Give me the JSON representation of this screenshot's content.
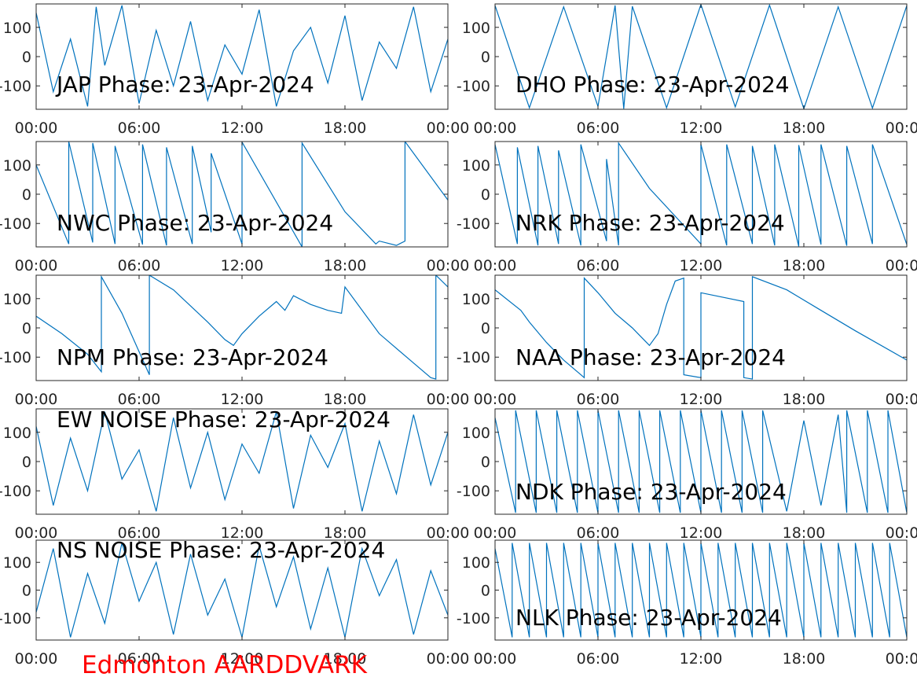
{
  "figure": {
    "footer_title": "Edmonton AARDDVARK"
  },
  "chart_data": [
    {
      "type": "line",
      "title": "JAP Phase: 23-Apr-2024",
      "xlabel": "",
      "ylabel": "",
      "xticks": [
        "00:00",
        "06:00",
        "12:00",
        "18:00",
        "00:00"
      ],
      "yticks": [
        "-100",
        "0",
        "100"
      ],
      "xlim": [
        0,
        24
      ],
      "ylim": [
        -180,
        180
      ],
      "grid": false,
      "line_color": "#0072bd",
      "series": [
        {
          "x": [
            0,
            1,
            2,
            3,
            3.5,
            4,
            5,
            6,
            7,
            8,
            9,
            10,
            11,
            12,
            13,
            14,
            15,
            16,
            17,
            18,
            19,
            20,
            21,
            22,
            23,
            24
          ],
          "values": [
            150,
            -120,
            60,
            -170,
            170,
            -30,
            175,
            -160,
            90,
            -100,
            120,
            -150,
            40,
            -60,
            160,
            -170,
            20,
            100,
            -90,
            140,
            -150,
            50,
            -40,
            170,
            -120,
            60
          ]
        }
      ]
    },
    {
      "type": "line",
      "title": "DHO Phase: 23-Apr-2024",
      "xlabel": "",
      "ylabel": "",
      "xticks": [
        "00:00",
        "06:00",
        "12:00",
        "18:00",
        "00:00"
      ],
      "yticks": [
        "-100",
        "0",
        "100"
      ],
      "xlim": [
        0,
        24
      ],
      "ylim": [
        -180,
        180
      ],
      "grid": false,
      "line_color": "#0072bd",
      "series": [
        {
          "x": [
            0,
            2,
            4,
            6,
            7,
            7.5,
            8,
            10,
            12,
            14,
            16,
            18,
            20,
            22,
            24
          ],
          "values": [
            175,
            -175,
            170,
            -170,
            175,
            -178,
            172,
            -175,
            178,
            -172,
            176,
            -178,
            170,
            -176,
            174
          ]
        }
      ]
    },
    {
      "type": "line",
      "title": "NWC Phase: 23-Apr-2024",
      "xlabel": "",
      "ylabel": "",
      "xticks": [
        "00:00",
        "06:00",
        "12:00",
        "18:00",
        "00:00"
      ],
      "yticks": [
        "-100",
        "0",
        "100"
      ],
      "xlim": [
        0,
        24
      ],
      "ylim": [
        -180,
        180
      ],
      "grid": false,
      "line_color": "#0072bd",
      "series": [
        {
          "x": [
            0,
            1.9,
            1.9,
            3.3,
            3.3,
            4.6,
            4.6,
            6.2,
            6.2,
            7.6,
            7.6,
            9.1,
            9.1,
            10.2,
            10.2,
            12,
            12,
            15.5,
            15.5,
            18,
            19.8,
            20,
            21,
            21.5,
            21.5,
            24
          ],
          "values": [
            100,
            -170,
            180,
            -165,
            175,
            -170,
            165,
            -172,
            170,
            -175,
            160,
            -170,
            165,
            -130,
            140,
            -170,
            178,
            -180,
            175,
            -60,
            -170,
            -160,
            -175,
            -160,
            180,
            -20
          ]
        }
      ]
    },
    {
      "type": "line",
      "title": "NRK Phase: 23-Apr-2024",
      "xlabel": "",
      "ylabel": "",
      "xticks": [
        "00:00",
        "06:00",
        "12:00",
        "18:00",
        "00:00"
      ],
      "yticks": [
        "-100",
        "0",
        "100"
      ],
      "xlim": [
        0,
        24
      ],
      "ylim": [
        -180,
        180
      ],
      "grid": false,
      "line_color": "#0072bd",
      "series": [
        {
          "x": [
            0,
            1.3,
            1.3,
            2.5,
            2.5,
            3.7,
            3.7,
            5,
            5,
            6.5,
            6.5,
            7.2,
            7.2,
            9,
            12,
            12,
            13.5,
            13.5,
            15,
            15,
            16.3,
            16.3,
            17.7,
            17.7,
            19,
            19,
            20.5,
            20.5,
            22,
            22,
            24
          ],
          "values": [
            170,
            -170,
            160,
            -175,
            165,
            -170,
            150,
            -175,
            170,
            -160,
            120,
            -175,
            175,
            20,
            -170,
            170,
            -175,
            170,
            -170,
            165,
            -175,
            170,
            -178,
            168,
            -172,
            170,
            -176,
            165,
            -170,
            170,
            -172
          ]
        }
      ]
    },
    {
      "type": "line",
      "title": "NPM Phase: 23-Apr-2024",
      "xlabel": "",
      "ylabel": "",
      "xticks": [
        "00:00",
        "06:00",
        "12:00",
        "18:00",
        "00:00"
      ],
      "yticks": [
        "-100",
        "0",
        "100"
      ],
      "xlim": [
        0,
        24
      ],
      "ylim": [
        -180,
        180
      ],
      "grid": false,
      "line_color": "#0072bd",
      "series": [
        {
          "x": [
            0,
            1.5,
            3,
            3.8,
            3.8,
            5,
            6.6,
            6.6,
            8,
            10,
            11,
            11.5,
            12,
            13,
            14,
            14.5,
            15,
            16,
            17,
            17.8,
            18,
            20,
            22,
            23,
            23.3,
            23.3,
            24
          ],
          "values": [
            40,
            -20,
            -90,
            -150,
            175,
            50,
            -160,
            180,
            130,
            20,
            -40,
            -60,
            -20,
            40,
            90,
            60,
            110,
            80,
            60,
            50,
            140,
            -20,
            -120,
            -170,
            -175,
            180,
            140
          ]
        }
      ]
    },
    {
      "type": "line",
      "title": "NAA Phase: 23-Apr-2024",
      "xlabel": "",
      "ylabel": "",
      "xticks": [
        "00:00",
        "06:00",
        "12:00",
        "18:00",
        "00:00"
      ],
      "yticks": [
        "-100",
        "0",
        "100"
      ],
      "xlim": [
        0,
        24
      ],
      "ylim": [
        -180,
        180
      ],
      "grid": false,
      "line_color": "#0072bd",
      "series": [
        {
          "x": [
            0,
            1.5,
            2,
            3,
            4,
            5,
            5.2,
            5.2,
            6,
            7,
            8,
            8.5,
            9,
            9.5,
            10,
            10.5,
            11,
            11,
            12,
            12,
            14.5,
            14.5,
            15,
            15,
            17,
            19,
            21,
            24
          ],
          "values": [
            130,
            60,
            20,
            -50,
            -110,
            -160,
            -170,
            170,
            120,
            50,
            0,
            -30,
            -60,
            -20,
            80,
            160,
            170,
            -160,
            -170,
            120,
            90,
            -170,
            -175,
            175,
            130,
            60,
            -10,
            -110
          ]
        }
      ]
    },
    {
      "type": "line",
      "title": "EW NOISE Phase: 23-Apr-2024",
      "xlabel": "",
      "ylabel": "",
      "xticks": [
        "00:00",
        "06:00",
        "12:00",
        "18:00",
        "00:00"
      ],
      "yticks": [
        "-100",
        "0",
        "100"
      ],
      "xlim": [
        0,
        24
      ],
      "ylim": [
        -180,
        180
      ],
      "grid": false,
      "line_color": "#0072bd",
      "series": [
        {
          "x": [
            0,
            1,
            2,
            3,
            4,
            5,
            6,
            7,
            8,
            9,
            10,
            11,
            12,
            13,
            14,
            15,
            16,
            17,
            18,
            19,
            20,
            21,
            22,
            23,
            24
          ],
          "values": [
            120,
            -150,
            80,
            -100,
            170,
            -60,
            40,
            -170,
            150,
            -90,
            100,
            -130,
            60,
            -40,
            170,
            -160,
            90,
            -20,
            130,
            -170,
            70,
            -110,
            160,
            -80,
            100
          ]
        }
      ]
    },
    {
      "type": "line",
      "title": "NDK Phase: 23-Apr-2024",
      "xlabel": "",
      "ylabel": "",
      "xticks": [
        "00:00",
        "06:00",
        "12:00",
        "18:00",
        "00:00"
      ],
      "yticks": [
        "-100",
        "0",
        "100"
      ],
      "xlim": [
        0,
        24
      ],
      "ylim": [
        -180,
        180
      ],
      "grid": false,
      "line_color": "#0072bd",
      "series": [
        {
          "x": [
            0,
            1.2,
            1.2,
            2.4,
            2.4,
            3.6,
            3.6,
            4.8,
            4.8,
            6,
            6,
            7.2,
            7.2,
            8.4,
            8.4,
            9.6,
            9.6,
            10.8,
            10.8,
            12,
            12,
            13.2,
            13.2,
            14.4,
            14.4,
            15.6,
            15.6,
            17,
            18,
            19,
            20,
            20.5,
            20.5,
            21.7,
            21.7,
            22.9,
            22.9,
            24
          ],
          "values": [
            150,
            -175,
            175,
            -175,
            175,
            -175,
            175,
            -175,
            175,
            -175,
            175,
            -175,
            175,
            -175,
            175,
            -175,
            175,
            -175,
            175,
            -175,
            175,
            -175,
            175,
            -175,
            175,
            -175,
            175,
            -170,
            140,
            -150,
            160,
            -175,
            175,
            -175,
            175,
            -175,
            175,
            -175
          ]
        }
      ]
    },
    {
      "type": "line",
      "title": "NS NOISE Phase: 23-Apr-2024",
      "xlabel": "",
      "ylabel": "",
      "xticks": [
        "00:00",
        "06:00",
        "12:00",
        "18:00",
        "00:00"
      ],
      "yticks": [
        "-100",
        "0",
        "100"
      ],
      "xlim": [
        0,
        24
      ],
      "ylim": [
        -180,
        180
      ],
      "grid": false,
      "line_color": "#0072bd",
      "series": [
        {
          "x": [
            0,
            1,
            2,
            3,
            4,
            5,
            6,
            7,
            8,
            9,
            10,
            11,
            12,
            13,
            14,
            15,
            16,
            17,
            18,
            19,
            20,
            21,
            22,
            23,
            24
          ],
          "values": [
            -80,
            150,
            -170,
            60,
            -120,
            170,
            -40,
            100,
            -160,
            130,
            -90,
            40,
            -170,
            160,
            -60,
            120,
            -140,
            80,
            -170,
            150,
            -20,
            110,
            -160,
            70,
            -90
          ]
        }
      ]
    },
    {
      "type": "line",
      "title": "NLK Phase: 23-Apr-2024",
      "xlabel": "",
      "ylabel": "",
      "xticks": [
        "00:00",
        "06:00",
        "12:00",
        "18:00",
        "00:00"
      ],
      "yticks": [
        "-100",
        "0",
        "100"
      ],
      "xlim": [
        0,
        24
      ],
      "ylim": [
        -180,
        180
      ],
      "grid": false,
      "line_color": "#0072bd",
      "series": [
        {
          "x": [
            0,
            1,
            1,
            2,
            2,
            3,
            3,
            4,
            4,
            5,
            5,
            6,
            6,
            7,
            7,
            8,
            8,
            9,
            9,
            10,
            10,
            11,
            11,
            12,
            12,
            13,
            13,
            14,
            14,
            15,
            15,
            16,
            16,
            17,
            17,
            18,
            18,
            19,
            19,
            20,
            20,
            21,
            21,
            22,
            22,
            23,
            23,
            24
          ],
          "values": [
            150,
            -170,
            170,
            -170,
            170,
            -170,
            170,
            -170,
            170,
            -170,
            170,
            -170,
            170,
            -170,
            170,
            -170,
            170,
            -170,
            170,
            -170,
            170,
            -170,
            170,
            -170,
            170,
            -170,
            170,
            -170,
            170,
            -170,
            170,
            -170,
            170,
            -170,
            170,
            -170,
            170,
            -170,
            170,
            -170,
            170,
            -170,
            170,
            -170,
            170,
            -170,
            170,
            -170
          ]
        }
      ]
    }
  ]
}
